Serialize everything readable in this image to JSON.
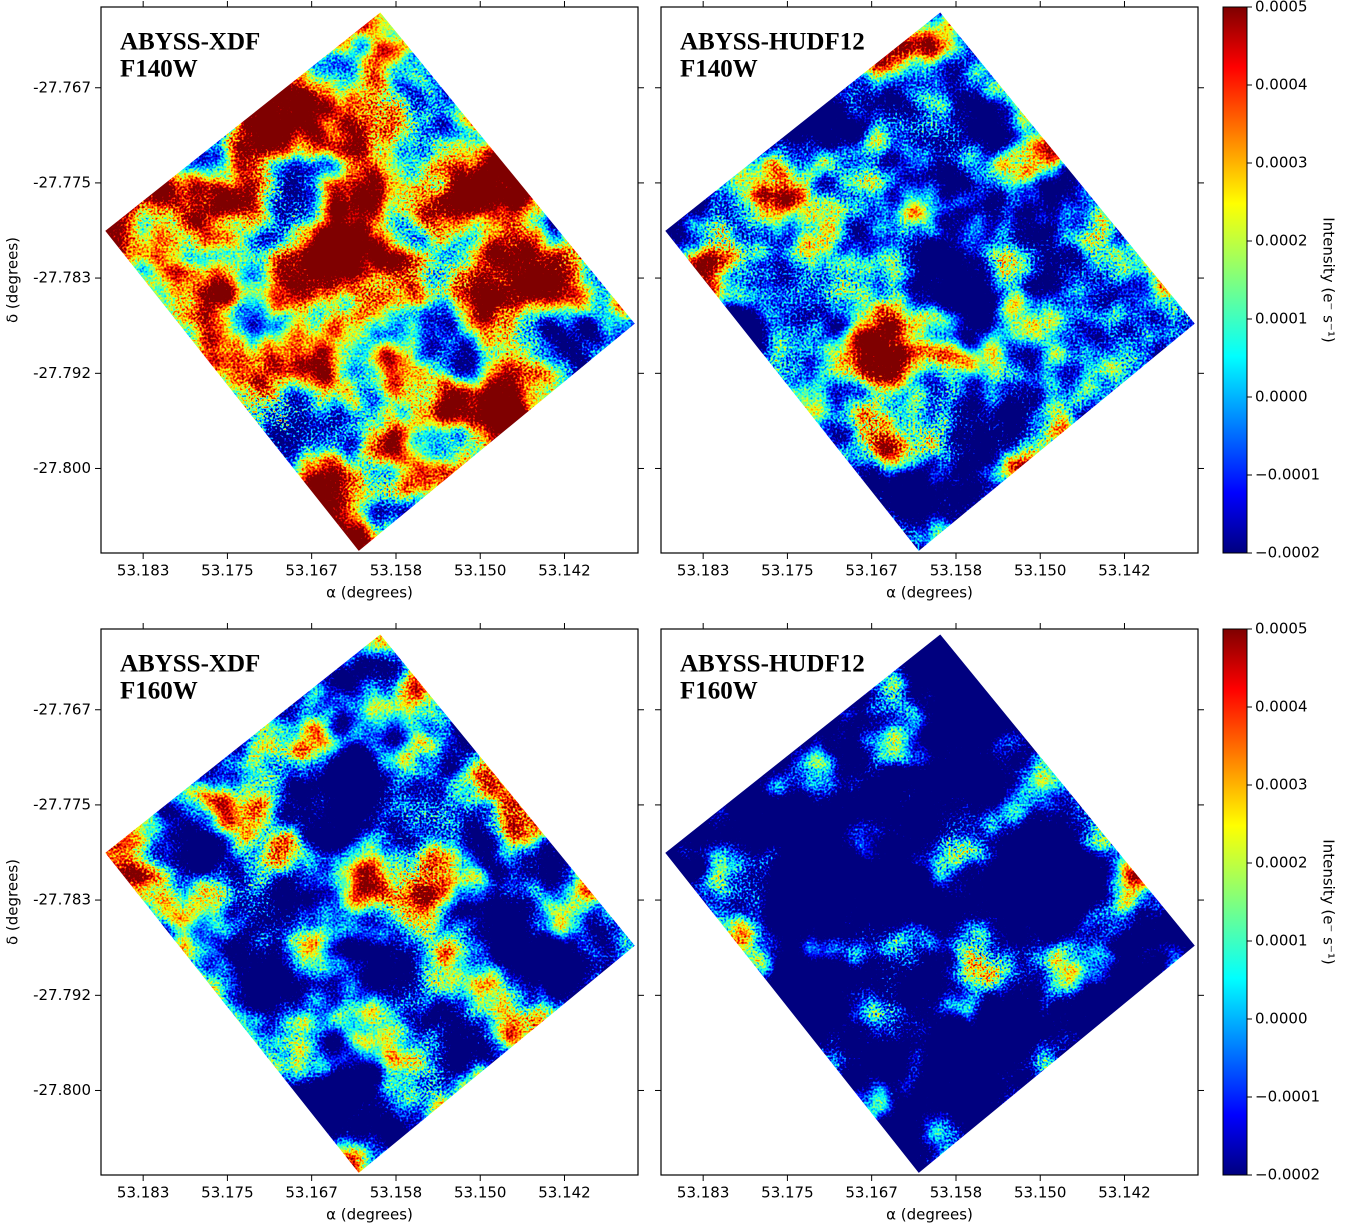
{
  "chart_data": [
    {
      "type": "image",
      "title": "ABYSS-XDF",
      "subtitle": "F140W",
      "xlabel": "α (degrees)",
      "ylabel": "δ (degrees)",
      "xlim": [
        53.1875,
        53.1344
      ],
      "ylim": [
        -27.8074,
        -27.7596
      ],
      "xticks": [
        {
          "value": 53.18333,
          "label": "53.183"
        },
        {
          "value": 53.175,
          "label": "53.175"
        },
        {
          "value": 53.16667,
          "label": "53.167"
        },
        {
          "value": 53.15833,
          "label": "53.158"
        },
        {
          "value": 53.15,
          "label": "53.150"
        },
        {
          "value": 53.14167,
          "label": "53.142"
        }
      ],
      "yticks": [
        {
          "value": -27.76667,
          "label": "-27.767"
        },
        {
          "value": -27.775,
          "label": "-27.775"
        },
        {
          "value": -27.78333,
          "label": "-27.783"
        },
        {
          "value": -27.79167,
          "label": "-27.792"
        },
        {
          "value": -27.8,
          "label": "-27.800"
        }
      ]
    },
    {
      "type": "image",
      "title": "ABYSS-HUDF12",
      "subtitle": "F140W",
      "xlabel": "α (degrees)",
      "xlim": [
        53.1875,
        53.1344
      ],
      "ylim": [
        -27.8074,
        -27.7596
      ],
      "xticks": [
        {
          "value": 53.18333,
          "label": "53.183"
        },
        {
          "value": 53.175,
          "label": "53.175"
        },
        {
          "value": 53.16667,
          "label": "53.167"
        },
        {
          "value": 53.15833,
          "label": "53.158"
        },
        {
          "value": 53.15,
          "label": "53.150"
        },
        {
          "value": 53.14167,
          "label": "53.142"
        }
      ],
      "yticks": [
        -27.76667,
        -27.775,
        -27.78333,
        -27.79167,
        -27.8
      ],
      "colorbar": {
        "label": "Intensity (e⁻ s⁻¹)",
        "lim": [
          -0.0002,
          0.0005
        ],
        "ticks": [
          0.0005,
          0.0004,
          0.0003,
          0.0002,
          0.0001,
          {
            "value": 0,
            "label": "0.0000"
          },
          {
            "value": -0.0001,
            "label": "−0.0001"
          },
          {
            "value": -0.0002,
            "label": "−0.0002"
          }
        ]
      }
    },
    {
      "type": "image",
      "title": "ABYSS-XDF",
      "subtitle": "F160W",
      "xlabel": "α (degrees)",
      "ylabel": "δ (degrees)",
      "xlim": [
        53.1875,
        53.1344
      ],
      "ylim": [
        -27.8074,
        -27.7596
      ],
      "xticks": [
        {
          "value": 53.18333,
          "label": "53.183"
        },
        {
          "value": 53.175,
          "label": "53.175"
        },
        {
          "value": 53.16667,
          "label": "53.167"
        },
        {
          "value": 53.15833,
          "label": "53.158"
        },
        {
          "value": 53.15,
          "label": "53.150"
        },
        {
          "value": 53.14167,
          "label": "53.142"
        }
      ],
      "yticks": [
        {
          "value": -27.76667,
          "label": "-27.767"
        },
        {
          "value": -27.775,
          "label": "-27.775"
        },
        {
          "value": -27.78333,
          "label": "-27.783"
        },
        {
          "value": -27.79167,
          "label": "-27.792"
        },
        {
          "value": -27.8,
          "label": "-27.800"
        }
      ]
    },
    {
      "type": "image",
      "title": "ABYSS-HUDF12",
      "subtitle": "F160W",
      "xlabel": "α (degrees)",
      "xlim": [
        53.1875,
        53.1344
      ],
      "ylim": [
        -27.8074,
        -27.7596
      ],
      "xticks": [
        {
          "value": 53.18333,
          "label": "53.183"
        },
        {
          "value": 53.175,
          "label": "53.175"
        },
        {
          "value": 53.16667,
          "label": "53.167"
        },
        {
          "value": 53.15833,
          "label": "53.158"
        },
        {
          "value": 53.15,
          "label": "53.150"
        },
        {
          "value": 53.14167,
          "label": "53.142"
        }
      ],
      "yticks": [
        -27.76667,
        -27.775,
        -27.78333,
        -27.79167,
        -27.8
      ],
      "colorbar": {
        "label": "Intensity (e⁻ s⁻¹)",
        "lim": [
          -0.0002,
          0.0005
        ],
        "ticks": [
          0.0005,
          0.0004,
          0.0003,
          0.0002,
          0.0001,
          {
            "value": 0,
            "label": "0.0000"
          },
          {
            "value": -0.0001,
            "label": "−0.0001"
          },
          {
            "value": -0.0002,
            "label": "−0.0002"
          }
        ]
      }
    }
  ]
}
